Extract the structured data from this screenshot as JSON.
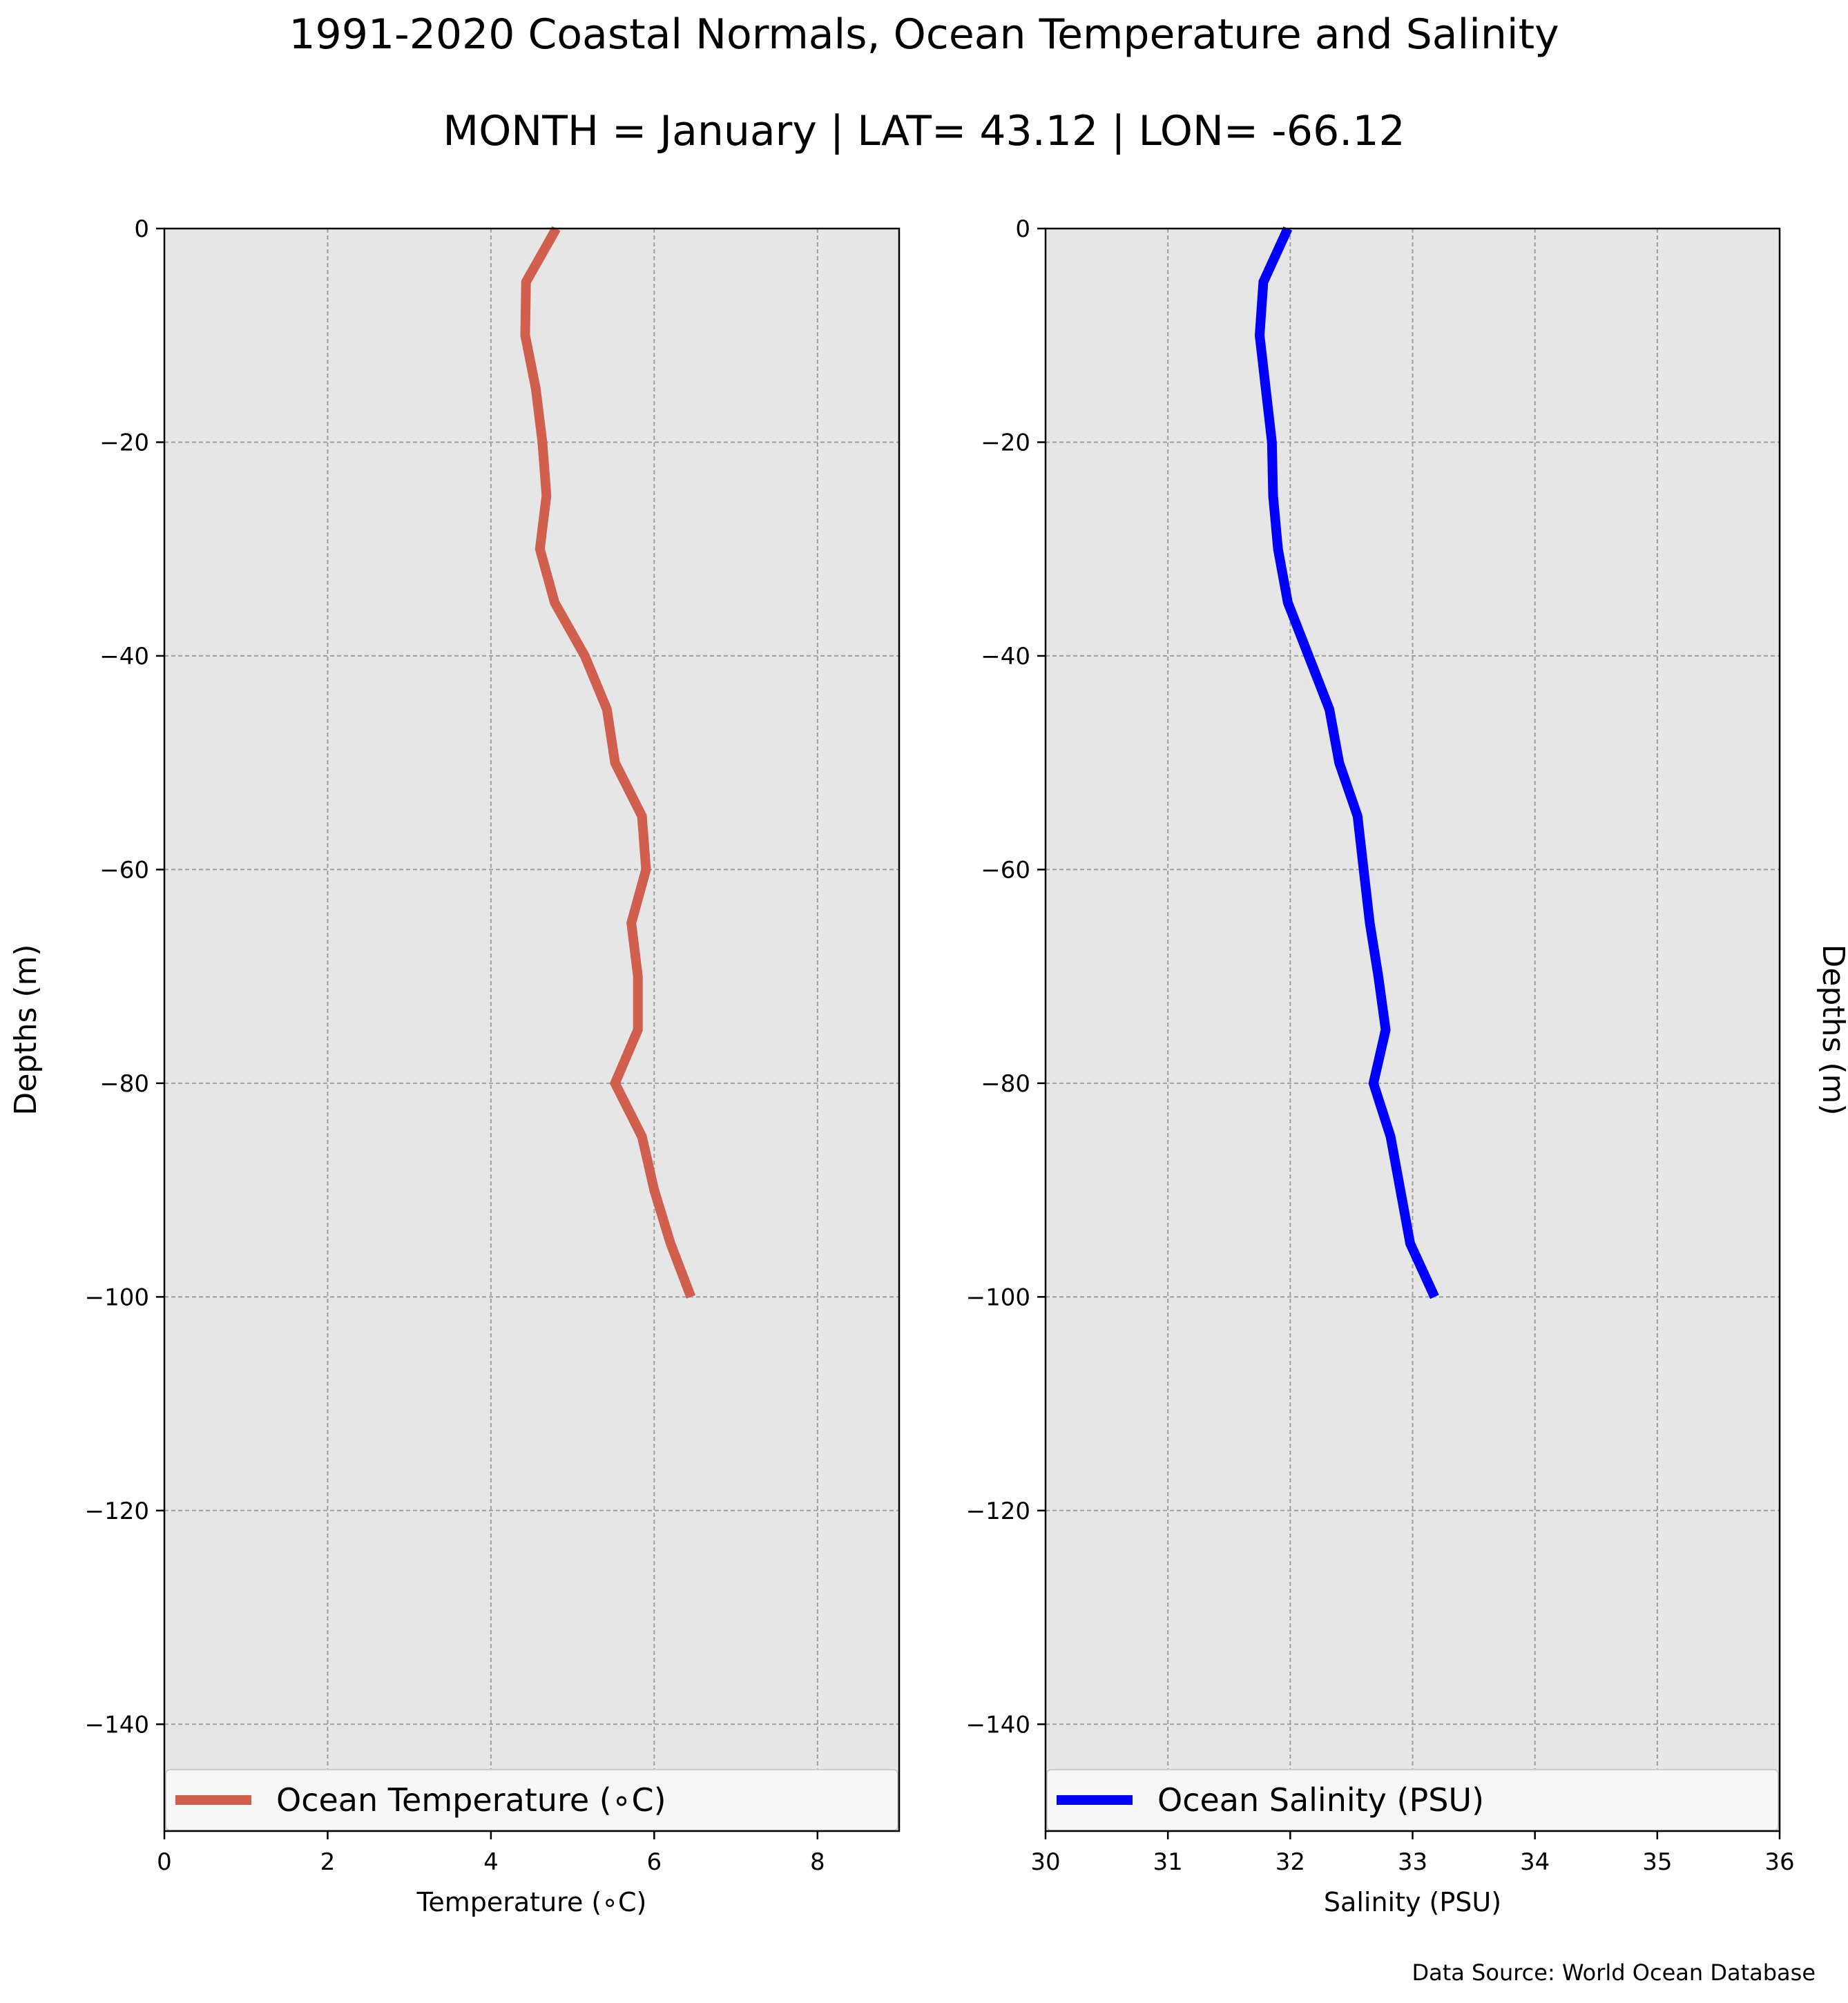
{
  "figure": {
    "title": "1991-2020 Coastal Normals, Ocean Temperature and Salinity",
    "subtitle": "MONTH = January | LAT= 43.12 | LON= -66.12",
    "source": "Data Source: World Ocean Database"
  },
  "chart_data": [
    {
      "type": "line",
      "xlabel": "Temperature (∘C)",
      "ylabel": "Depths (m)",
      "xlim": [
        0,
        9
      ],
      "ylim": [
        -150,
        0
      ],
      "x_ticks": [
        0,
        2,
        4,
        6,
        8
      ],
      "x_tick_labels": [
        "0",
        "2",
        "4",
        "6",
        "8"
      ],
      "y_ticks": [
        0,
        -20,
        -40,
        -60,
        -80,
        -100,
        -120,
        -140
      ],
      "y_tick_labels": [
        "0",
        "−20",
        "−40",
        "−60",
        "−80",
        "−100",
        "−120",
        "−140"
      ],
      "grid": true,
      "legend_position": "bottom",
      "colors": {
        "plot_bg": "#e6e6e6",
        "grid": "#a0a0a0"
      },
      "series": [
        {
          "name": "Ocean Temperature (∘C)",
          "color": "#d0604d",
          "x": [
            4.8,
            4.43,
            4.42,
            4.55,
            4.63,
            4.68,
            4.6,
            4.78,
            5.15,
            5.42,
            5.52,
            5.85,
            5.9,
            5.72,
            5.8,
            5.8,
            5.52,
            5.85,
            6.0,
            6.2,
            6.45
          ],
          "y": [
            0,
            -5,
            -10,
            -15,
            -20,
            -25,
            -30,
            -35,
            -40,
            -45,
            -50,
            -55,
            -60,
            -65,
            -70,
            -75,
            -80,
            -85,
            -90,
            -95,
            -100
          ]
        }
      ]
    },
    {
      "type": "line",
      "xlabel": "Salinity (PSU)",
      "ylabel": "Depths (m)",
      "xlim": [
        30,
        36
      ],
      "ylim": [
        -150,
        0
      ],
      "x_ticks": [
        30,
        31,
        32,
        33,
        34,
        35,
        36
      ],
      "x_tick_labels": [
        "30",
        "31",
        "32",
        "33",
        "34",
        "35",
        "36"
      ],
      "y_ticks": [
        0,
        -20,
        -40,
        -60,
        -80,
        -100,
        -120,
        -140
      ],
      "y_tick_labels": [
        "0",
        "−20",
        "−40",
        "−60",
        "−80",
        "−100",
        "−120",
        "−140"
      ],
      "grid": true,
      "legend_position": "bottom",
      "colors": {
        "plot_bg": "#e6e6e6",
        "grid": "#a0a0a0"
      },
      "series": [
        {
          "name": "Ocean Salinity (PSU)",
          "color": "#0000ff",
          "x": [
            31.98,
            31.78,
            31.75,
            31.8,
            31.85,
            31.86,
            31.9,
            31.98,
            32.15,
            32.32,
            32.4,
            32.55,
            32.6,
            32.65,
            32.72,
            32.78,
            32.68,
            32.82,
            32.9,
            32.98,
            33.18
          ],
          "y": [
            0,
            -5,
            -10,
            -15,
            -20,
            -25,
            -30,
            -35,
            -40,
            -45,
            -50,
            -55,
            -60,
            -65,
            -70,
            -75,
            -80,
            -85,
            -90,
            -95,
            -100
          ]
        }
      ]
    }
  ]
}
